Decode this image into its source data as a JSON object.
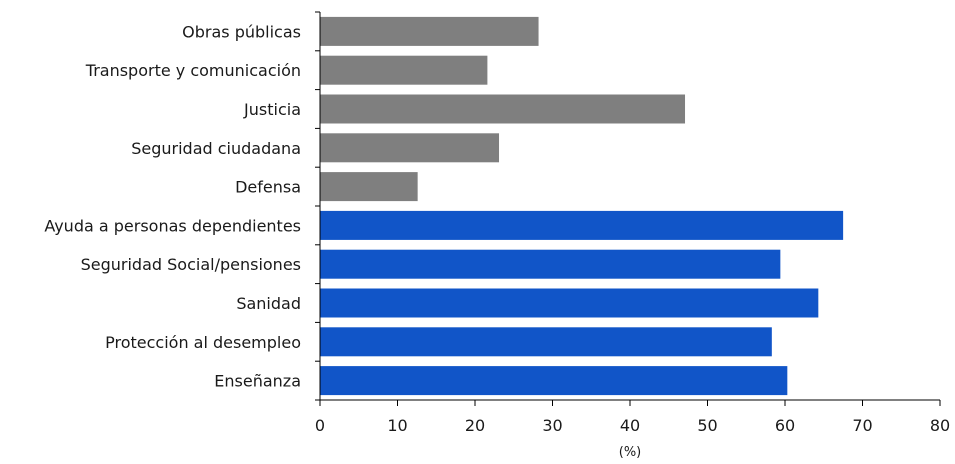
{
  "chart_data": {
    "type": "bar",
    "orientation": "horizontal",
    "categories": [
      "Obras públicas",
      "Transporte y comunicación",
      "Justicia",
      "Seguridad ciudadana",
      "Defensa",
      "Ayuda a personas dependientes",
      "Seguridad Social/pensiones",
      "Sanidad",
      "Protección al desempleo",
      "Enseñanza"
    ],
    "values": [
      28.2,
      21.6,
      47.1,
      23.1,
      12.6,
      67.5,
      59.4,
      64.3,
      58.3,
      60.3
    ],
    "bar_colors": [
      "#7f7f7f",
      "#7f7f7f",
      "#7f7f7f",
      "#7f7f7f",
      "#7f7f7f",
      "#1155c8",
      "#1155c8",
      "#1155c8",
      "#1155c8",
      "#1155c8"
    ],
    "xlabel": "(%)",
    "xlim": [
      0,
      80
    ],
    "xticks": [
      "0",
      "10",
      "20",
      "30",
      "40",
      "50",
      "60",
      "70",
      "80"
    ],
    "grid": false
  }
}
